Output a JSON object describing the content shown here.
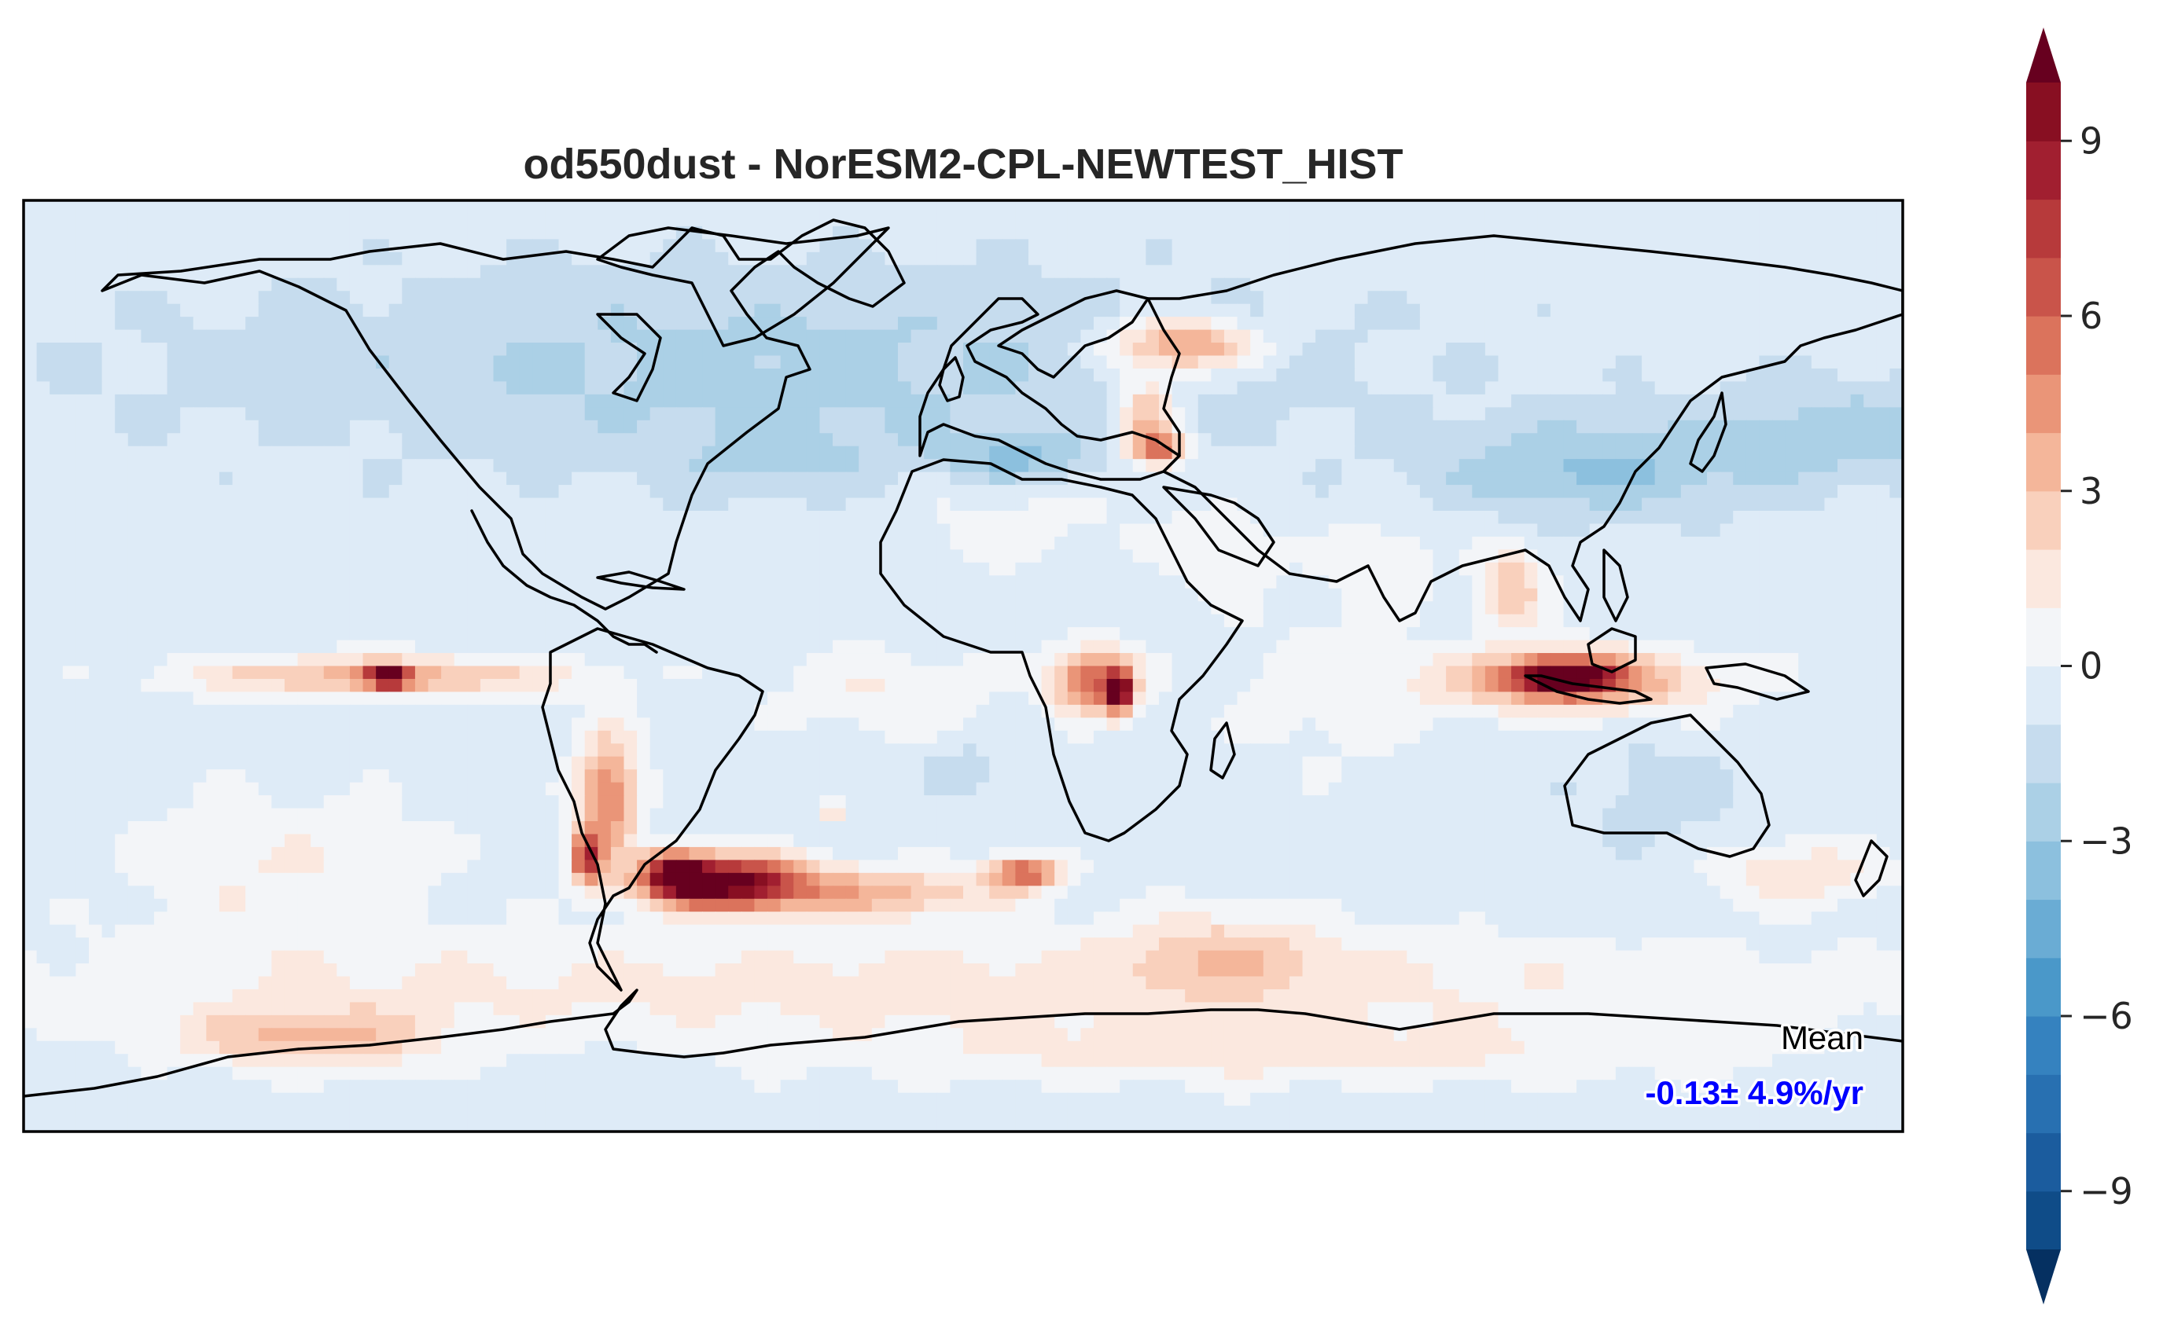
{
  "map": {
    "title": "od550dust - NorESM2-CPL-NEWTEST_HIST",
    "projection": "PlateCarree",
    "extent_lon": [
      -180,
      180
    ],
    "extent_lat": [
      -90,
      90
    ],
    "background_value": -0.5,
    "mean_label": "Mean",
    "mean_value": "-0.13± 4.9%/yr",
    "mean_value_color": "#0000ff",
    "anomalies": [
      {
        "name": "northern-hemisphere-land",
        "lon": -40,
        "lat": 58,
        "value": -1.8,
        "spread_lon": 110,
        "spread_lat": 18
      },
      {
        "name": "north-atlantic",
        "lon": -35,
        "lat": 40,
        "value": -1.2,
        "spread_lon": 25,
        "spread_lat": 8
      },
      {
        "name": "mediterranean",
        "lon": 10,
        "lat": 40,
        "value": -2.4,
        "spread_lon": 14,
        "spread_lat": 5
      },
      {
        "name": "east-asia",
        "lon": 120,
        "lat": 38,
        "value": -2.6,
        "spread_lon": 30,
        "spread_lat": 9
      },
      {
        "name": "north-pacific",
        "lon": 170,
        "lat": 45,
        "value": -2.0,
        "spread_lon": 30,
        "spread_lat": 10
      },
      {
        "name": "northern-russia",
        "lon": 42,
        "lat": 62,
        "value": 5.5,
        "spread_lon": 14,
        "spread_lat": 5
      },
      {
        "name": "eastern-europe",
        "lon": 35,
        "lat": 48,
        "value": 4.2,
        "spread_lon": 6,
        "spread_lat": 8
      },
      {
        "name": "black-sea",
        "lon": 38,
        "lat": 42,
        "value": 5.0,
        "spread_lon": 5,
        "spread_lat": 3
      },
      {
        "name": "north-africa",
        "lon": 10,
        "lat": 28,
        "value": 1.0,
        "spread_lon": 25,
        "spread_lat": 10
      },
      {
        "name": "arabia",
        "lon": 50,
        "lat": 22,
        "value": 1.5,
        "spread_lon": 10,
        "spread_lat": 8
      },
      {
        "name": "equatorial-pacific",
        "lon": -112,
        "lat": -2,
        "value": 4.2,
        "spread_lon": 35,
        "spread_lat": 4
      },
      {
        "name": "pacific-hotspot",
        "lon": -110,
        "lat": -2,
        "value": 9.5,
        "spread_lon": 4,
        "spread_lat": 2
      },
      {
        "name": "central-africa",
        "lon": 25,
        "lat": -3,
        "value": 6.5,
        "spread_lon": 8,
        "spread_lat": 6
      },
      {
        "name": "east-africa",
        "lon": 30,
        "lat": -5,
        "value": 9.5,
        "spread_lon": 2.5,
        "spread_lat": 4
      },
      {
        "name": "tropical-atlantic",
        "lon": -15,
        "lat": -5,
        "value": 1.5,
        "spread_lon": 20,
        "spread_lat": 8
      },
      {
        "name": "south-atlantic-cold",
        "lon": 0,
        "lat": -20,
        "value": -1.5,
        "spread_lon": 6,
        "spread_lat": 4
      },
      {
        "name": "indian-ocean-warm",
        "lon": 70,
        "lat": -5,
        "value": 1.0,
        "spread_lon": 20,
        "spread_lat": 15
      },
      {
        "name": "indonesia",
        "lon": 117,
        "lat": -3,
        "value": 5.5,
        "spread_lon": 25,
        "spread_lat": 6
      },
      {
        "name": "indonesia-core",
        "lon": 115,
        "lat": -2,
        "value": 10.5,
        "spread_lon": 9,
        "spread_lat": 3
      },
      {
        "name": "south-china-sea",
        "lon": 105,
        "lat": 15,
        "value": 3.5,
        "spread_lon": 6,
        "spread_lat": 8
      },
      {
        "name": "india",
        "lon": 80,
        "lat": 20,
        "value": 1.5,
        "spread_lon": 10,
        "spread_lat": 8
      },
      {
        "name": "australia",
        "lon": 133,
        "lat": -25,
        "value": -1.0,
        "spread_lon": 15,
        "spread_lat": 10
      },
      {
        "name": "south-america-west",
        "lon": -68,
        "lat": -25,
        "value": 5.5,
        "spread_lon": 6,
        "spread_lat": 12
      },
      {
        "name": "southern-andes",
        "lon": -72,
        "lat": -37,
        "value": 7.5,
        "spread_lon": 3,
        "spread_lat": 5
      },
      {
        "name": "south-atlantic-plume",
        "lon": -45,
        "lat": -42,
        "value": 11.0,
        "spread_lon": 15,
        "spread_lat": 5
      },
      {
        "name": "south-atlantic-plume-west",
        "lon": -55,
        "lat": -40,
        "value": 8.0,
        "spread_lon": 6,
        "spread_lat": 4
      },
      {
        "name": "south-atlantic-tail",
        "lon": -15,
        "lat": -44,
        "value": 3.8,
        "spread_lon": 22,
        "spread_lat": 5
      },
      {
        "name": "off-south-africa",
        "lon": 12,
        "lat": -40,
        "value": 6.5,
        "spread_lon": 7,
        "spread_lat": 3
      },
      {
        "name": "small-atlantic-spot",
        "lon": -25,
        "lat": -28,
        "value": 6.0,
        "spread_lon": 1.5,
        "spread_lat": 1.5
      },
      {
        "name": "southern-indian",
        "lon": 50,
        "lat": -55,
        "value": 2.5,
        "spread_lon": 20,
        "spread_lat": 8
      },
      {
        "name": "southern-ocean",
        "lon": 0,
        "lat": -62,
        "value": 2.0,
        "spread_lon": 180,
        "spread_lat": 10
      },
      {
        "name": "antarctic-pacific",
        "lon": -125,
        "lat": -72,
        "value": 3.5,
        "spread_lon": 25,
        "spread_lat": 6
      },
      {
        "name": "antarctic-interior",
        "lon": 60,
        "lat": -75,
        "value": 1.8,
        "spread_lon": 80,
        "spread_lat": 6
      },
      {
        "name": "tasman",
        "lon": 160,
        "lat": -40,
        "value": 2.5,
        "spread_lon": 15,
        "spread_lat": 6
      },
      {
        "name": "south-pacific",
        "lon": -130,
        "lat": -40,
        "value": 1.5,
        "spread_lon": 30,
        "spread_lat": 15
      }
    ]
  },
  "colorbar": {
    "levels": [
      -10,
      -9,
      -8,
      -7,
      -6,
      -5,
      -4,
      -3,
      -2,
      -1,
      0,
      1,
      2,
      3,
      4,
      5,
      6,
      7,
      8,
      9,
      10
    ],
    "colors": [
      "#0f4c88",
      "#1b5c9e",
      "#2870b1",
      "#3582bf",
      "#4a98c9",
      "#6aacd4",
      "#8cc0de",
      "#abd0e6",
      "#c6dcee",
      "#deebf7",
      "#f3f5f8",
      "#fbe8df",
      "#f9d0bc",
      "#f4b69a",
      "#ea9578",
      "#db735c",
      "#c9544a",
      "#b73a3b",
      "#a11f30",
      "#880f22"
    ],
    "extend_low_color": "#053061",
    "extend_high_color": "#67001f",
    "tick_labels": [
      "9",
      "6",
      "3",
      "0",
      "−3",
      "−6",
      "−9"
    ]
  }
}
